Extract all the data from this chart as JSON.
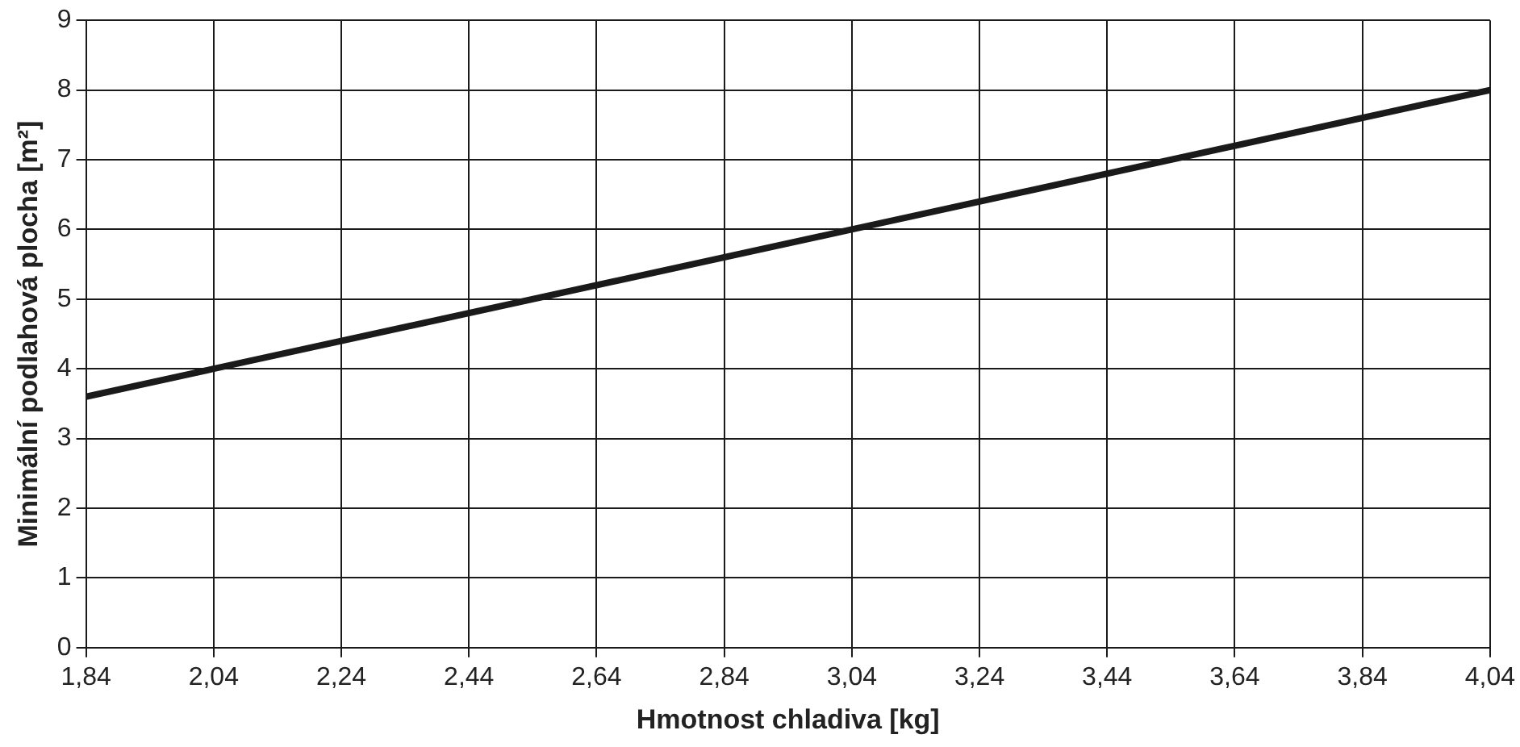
{
  "chart_data": {
    "type": "line",
    "xlabel": "Hmotnost chladiva [kg]",
    "ylabel": "Minimální podlahová plocha [m²]",
    "x": [
      1.84,
      2.04,
      3.04,
      4.04
    ],
    "series": [
      {
        "color": "#1a1a1a",
        "values": [
          3.6,
          4.0,
          6.0,
          8.0
        ]
      }
    ],
    "xlim": [
      1.84,
      4.04
    ],
    "xticks": [
      {
        "value": 1.84,
        "label": "1,84"
      },
      {
        "value": 2.04,
        "label": "2,04"
      },
      {
        "value": 2.24,
        "label": "2,24"
      },
      {
        "value": 2.44,
        "label": "2,44"
      },
      {
        "value": 2.64,
        "label": "2,64"
      },
      {
        "value": 2.84,
        "label": "2,84"
      },
      {
        "value": 3.04,
        "label": "3,04"
      },
      {
        "value": 3.24,
        "label": "3,24"
      },
      {
        "value": 3.44,
        "label": "3,44"
      },
      {
        "value": 3.64,
        "label": "3,64"
      },
      {
        "value": 3.84,
        "label": "3,84"
      },
      {
        "value": 4.04,
        "label": "4,04"
      }
    ],
    "ylim": [
      0,
      9
    ],
    "yticks": [
      0,
      1,
      2,
      3,
      4,
      5,
      6,
      7,
      8,
      9
    ],
    "grid": true,
    "legend": false,
    "marker": "none",
    "line_style": "solid"
  }
}
